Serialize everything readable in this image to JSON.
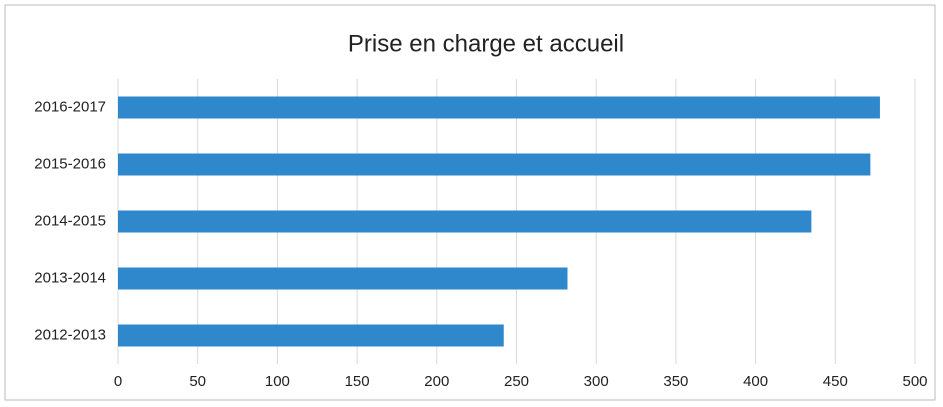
{
  "chart_data": {
    "type": "bar",
    "orientation": "horizontal",
    "title": "Prise en charge et accueil",
    "categories": [
      "2016-2017",
      "2015-2016",
      "2014-2015",
      "2013-2014",
      "2012-2013"
    ],
    "values": [
      478,
      472,
      435,
      282,
      242
    ],
    "color": "#2f88cc",
    "xlim": [
      0,
      500
    ],
    "xticks": [
      0,
      50,
      100,
      150,
      200,
      250,
      300,
      350,
      400,
      450,
      500
    ],
    "grid": true
  }
}
